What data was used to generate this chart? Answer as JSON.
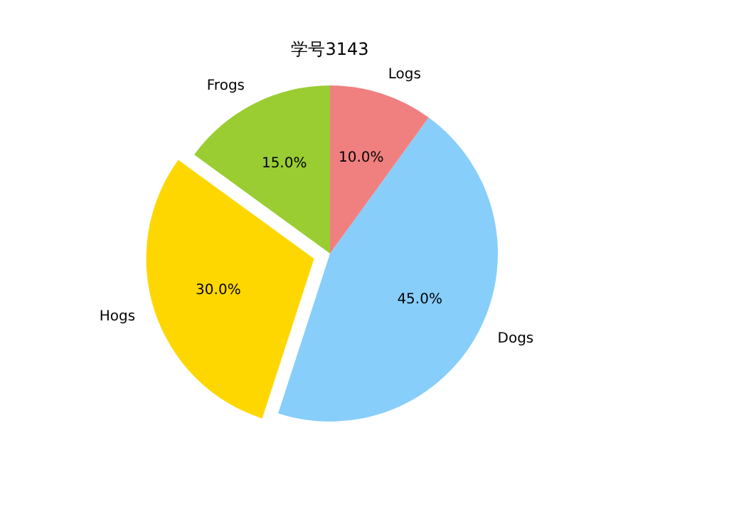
{
  "chart_data": {
    "type": "pie",
    "title": "学号3143",
    "categories": [
      "Frogs",
      "Hogs",
      "Dogs",
      "Logs"
    ],
    "values": [
      15,
      30,
      45,
      10
    ],
    "colors": [
      "#9acd32",
      "#ffd700",
      "#87cefa",
      "#f08080"
    ],
    "value_labels": [
      "15.0%",
      "30.0%",
      "45.0%",
      "10.0%"
    ]
  }
}
